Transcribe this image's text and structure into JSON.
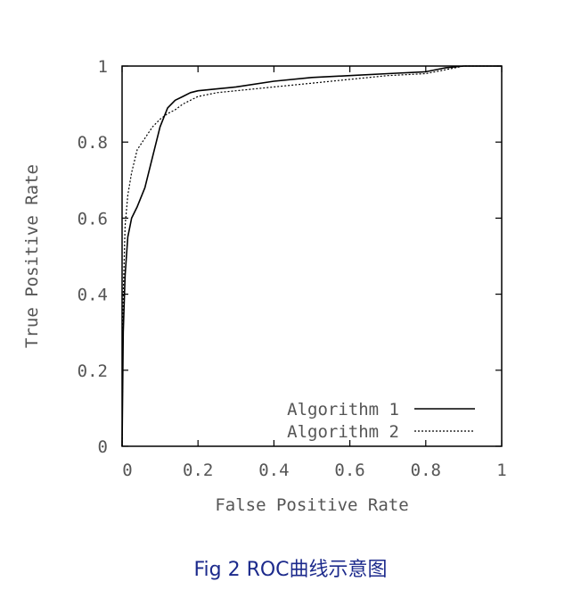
{
  "chart_data": {
    "type": "line",
    "title": "",
    "xlabel": "False Positive Rate",
    "ylabel": "True Positive Rate",
    "xlim": [
      0,
      1
    ],
    "ylim": [
      0,
      1
    ],
    "xticks": [
      "0",
      "0.2",
      "0.4",
      "0.6",
      "0.8",
      "1"
    ],
    "yticks": [
      "0",
      "0.2",
      "0.4",
      "0.6",
      "0.8",
      "1"
    ],
    "legend_position": "bottom-right",
    "grid": false,
    "series": [
      {
        "name": "Algorithm 1",
        "line_style": "solid",
        "x": [
          0,
          0.003,
          0.008,
          0.015,
          0.025,
          0.04,
          0.06,
          0.08,
          0.1,
          0.12,
          0.14,
          0.16,
          0.18,
          0.2,
          0.25,
          0.3,
          0.4,
          0.5,
          0.6,
          0.7,
          0.8,
          0.85,
          0.9,
          1.0
        ],
        "y": [
          0,
          0.3,
          0.45,
          0.55,
          0.6,
          0.63,
          0.68,
          0.76,
          0.84,
          0.89,
          0.91,
          0.92,
          0.93,
          0.935,
          0.94,
          0.945,
          0.96,
          0.97,
          0.975,
          0.98,
          0.985,
          0.995,
          1.0,
          1.0
        ]
      },
      {
        "name": "Algorithm 2",
        "line_style": "dashed",
        "x": [
          0,
          0.003,
          0.008,
          0.015,
          0.025,
          0.04,
          0.06,
          0.08,
          0.1,
          0.12,
          0.14,
          0.16,
          0.2,
          0.25,
          0.3,
          0.4,
          0.5,
          0.6,
          0.7,
          0.8,
          0.85,
          0.9,
          1.0
        ],
        "y": [
          0,
          0.4,
          0.58,
          0.66,
          0.72,
          0.78,
          0.81,
          0.84,
          0.86,
          0.875,
          0.885,
          0.9,
          0.92,
          0.93,
          0.935,
          0.945,
          0.955,
          0.965,
          0.975,
          0.98,
          0.99,
          1.0,
          1.0
        ]
      }
    ]
  },
  "caption": {
    "text": "Fig 2 ROC曲线示意图"
  }
}
